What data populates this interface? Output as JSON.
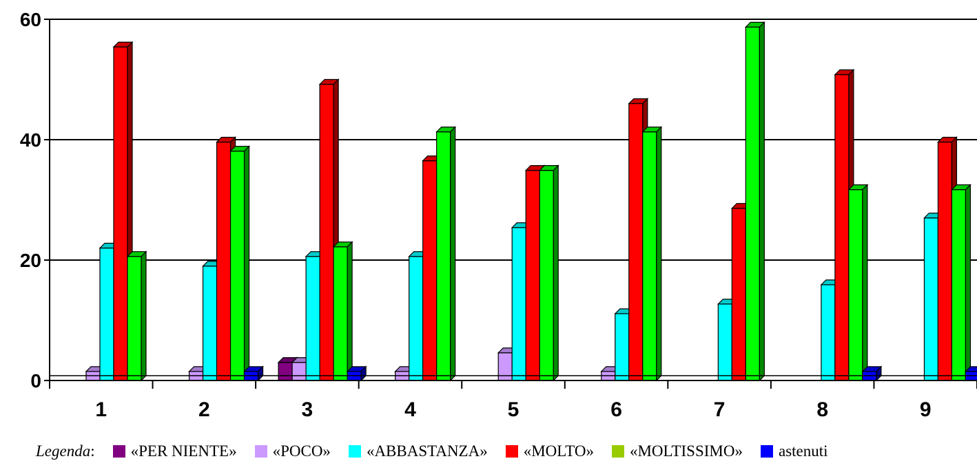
{
  "chart_data": {
    "type": "bar",
    "categories": [
      "1",
      "2",
      "3",
      "4",
      "5",
      "6",
      "7",
      "8",
      "9"
    ],
    "ylim": [
      0,
      60
    ],
    "yticks": [
      "0",
      "20",
      "40",
      "60"
    ],
    "grid": true,
    "legend_placement": "bottom",
    "series": [
      {
        "name": "«PER NIENTE»",
        "color": "#800080",
        "values": [
          0,
          0,
          3,
          0,
          0,
          0,
          0,
          0,
          0
        ]
      },
      {
        "name": "«POCO»",
        "color": "#cc99ff",
        "values": [
          1.5,
          1.5,
          3,
          1.5,
          4.6,
          1.5,
          0,
          0,
          0
        ]
      },
      {
        "name": "«ABBASTANZA»",
        "color": "#00ffff",
        "values": [
          22,
          19,
          20.6,
          20.6,
          25.4,
          11.1,
          12.7,
          15.9,
          27
        ]
      },
      {
        "name": "«MOLTO»",
        "color": "#ff0000",
        "values": [
          55.4,
          39.6,
          49.2,
          36.5,
          34.9,
          46,
          28.6,
          50.8,
          39.6
        ]
      },
      {
        "name": "«MOLTISSIMO»",
        "color": "#00ff00",
        "values": [
          20.6,
          38.1,
          22.2,
          41.3,
          34.9,
          41.3,
          58.7,
          31.7,
          31.7
        ]
      },
      {
        "name": "astenuti",
        "color": "#0000ff",
        "values": [
          0,
          1.5,
          1.5,
          0,
          0,
          0,
          0,
          1.5,
          1.5
        ]
      }
    ]
  },
  "legend": {
    "title": "Legenda",
    "separator": ":",
    "items": [
      {
        "label": "«PER NIENTE»",
        "color": "#800080"
      },
      {
        "label": "«POCO»",
        "color": "#cc99ff"
      },
      {
        "label": "«ABBASTANZA»",
        "color": "#00ffff"
      },
      {
        "label": "«MOLTO»",
        "color": "#ff0000"
      },
      {
        "label": "«MOLTISSIMO»",
        "color": "#99cc00"
      },
      {
        "label": "astenuti",
        "color": "#0000ff"
      }
    ]
  }
}
